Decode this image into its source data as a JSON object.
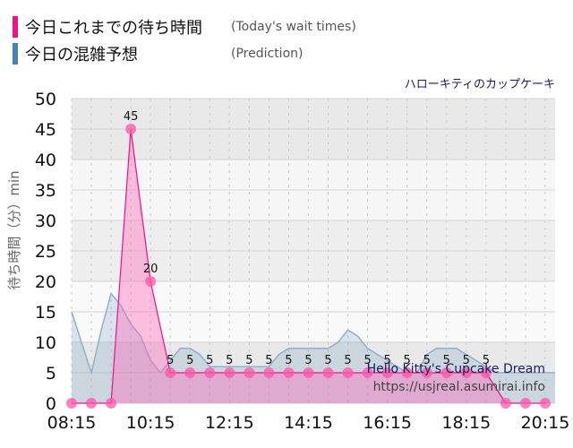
{
  "legend": {
    "today": {
      "label": "今日これまでの待ち時間",
      "en": "(Today's wait times)",
      "color": "#ee1188"
    },
    "prediction": {
      "label": "今日の混雑予想",
      "en": "(Prediction)",
      "color": "#4682b4"
    }
  },
  "attraction": {
    "title_ja": "ハローキティのカップケーキ",
    "title_en": "Hello Kitty's Cupcake Dream",
    "url": "https://usjreal.asumirai.info"
  },
  "chart_data": {
    "type": "area",
    "ylabel": "待ち時間（分）min",
    "ylim": [
      0,
      50
    ],
    "yticks": [
      0,
      5,
      10,
      15,
      20,
      25,
      30,
      35,
      40,
      45,
      50
    ],
    "xlim": [
      "08:15",
      "20:30"
    ],
    "xticks": [
      "08:15",
      "10:15",
      "12:15",
      "14:15",
      "16:15",
      "18:15",
      "20:15"
    ],
    "grid": true,
    "series": [
      {
        "key": "prediction",
        "kind": "area",
        "color": "#4682b4",
        "times": [
          "08:15",
          "08:30",
          "08:45",
          "09:00",
          "09:15",
          "09:30",
          "09:45",
          "10:00",
          "10:15",
          "10:30",
          "10:45",
          "11:00",
          "11:15",
          "11:30",
          "11:45",
          "12:00",
          "12:15",
          "12:30",
          "12:45",
          "13:00",
          "13:15",
          "13:30",
          "13:45",
          "14:00",
          "14:15",
          "14:30",
          "14:45",
          "15:00",
          "15:15",
          "15:30",
          "15:45",
          "16:00",
          "16:15",
          "16:30",
          "16:45",
          "17:00",
          "17:15",
          "17:30",
          "17:45",
          "18:00",
          "18:15",
          "18:30",
          "18:45",
          "19:00",
          "19:15",
          "19:30",
          "19:45",
          "20:00",
          "20:15",
          "20:30"
        ],
        "values": [
          15,
          10,
          5,
          12,
          18,
          16,
          13,
          11,
          7,
          5,
          7,
          9,
          9,
          8,
          6,
          6,
          6,
          6,
          6,
          6,
          6,
          8,
          9,
          9,
          9,
          9,
          9,
          10,
          12,
          11,
          9,
          8,
          7,
          6,
          5,
          5,
          8,
          9,
          9,
          9,
          8,
          7,
          6,
          5,
          5,
          5,
          5,
          5,
          5,
          5
        ]
      },
      {
        "key": "today",
        "kind": "area-points",
        "color": "#ee1188",
        "times": [
          "08:15",
          "08:45",
          "09:15",
          "09:45",
          "10:15",
          "10:45",
          "11:15",
          "11:45",
          "12:15",
          "12:45",
          "13:15",
          "13:45",
          "14:15",
          "14:45",
          "15:15",
          "15:45",
          "16:15",
          "16:45",
          "17:15",
          "17:45",
          "18:15",
          "18:45",
          "19:15",
          "19:45",
          "20:15"
        ],
        "values": [
          0,
          0,
          0,
          45,
          20,
          5,
          5,
          5,
          5,
          5,
          5,
          5,
          5,
          5,
          5,
          5,
          5,
          5,
          5,
          5,
          5,
          5,
          0,
          0,
          0
        ],
        "labels": [
          "",
          "",
          "",
          "45",
          "20",
          "5",
          "5",
          "5",
          "5",
          "5",
          "5",
          "5",
          "5",
          "5",
          "5",
          "5",
          "5",
          "5",
          "5",
          "5",
          "5",
          "5",
          "",
          "",
          ""
        ]
      }
    ]
  }
}
